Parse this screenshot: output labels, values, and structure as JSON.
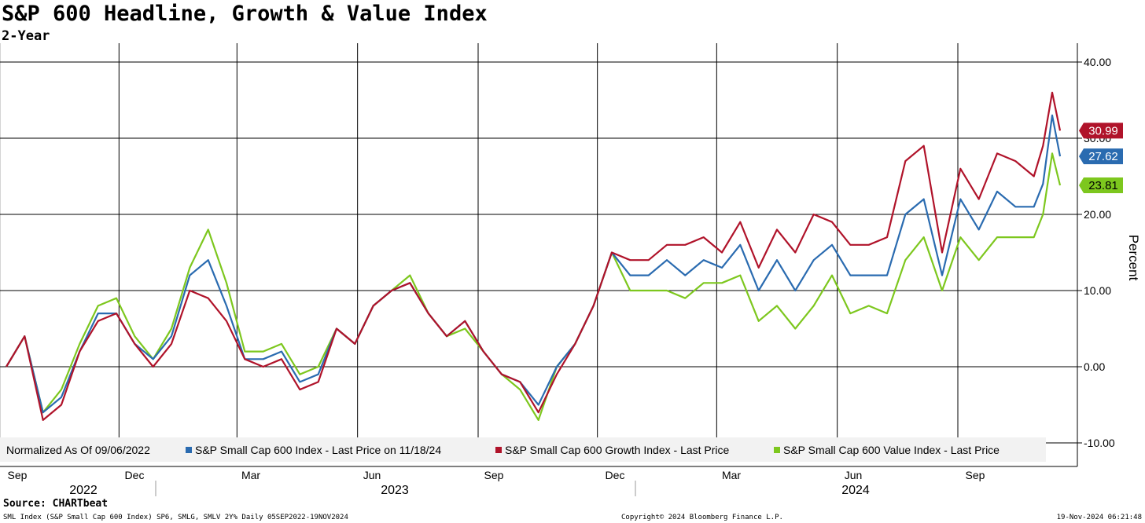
{
  "header": {
    "title": "S&P 600 Headline, Growth & Value Index",
    "subtitle": "2-Year"
  },
  "legend": {
    "normalized": "Normalized As Of 09/06/2022",
    "items": [
      {
        "label": "S&P Small Cap 600 Index - Last Price on 11/18/24",
        "color": "#2a6bb0"
      },
      {
        "label": "S&P Small Cap 600 Growth Index - Last Price",
        "color": "#b0132a"
      },
      {
        "label": "S&P Small Cap 600 Value Index - Last Price",
        "color": "#7dc71e"
      }
    ]
  },
  "footer": {
    "source": "Source: CHARTbeat",
    "left": "SML Index (S&P Small Cap 600 Index) SP6, SMLG, SMLV 2Y%  Daily 05SEP2022-19NOV2024",
    "mid": "Copyright© 2024 Bloomberg Finance L.P.",
    "right": "19-Nov-2024 06:21:48"
  },
  "chart_data": {
    "type": "line",
    "title": "S&P 600 Headline, Growth & Value Index",
    "subtitle": "2-Year",
    "ylabel": "Percent",
    "ylim": [
      -10,
      40
    ],
    "yticks": [
      -10,
      0,
      10,
      20,
      30,
      40
    ],
    "ytick_labels": [
      "-10.00",
      "0.00",
      "10.00",
      "20.00",
      "30.00",
      "40.00"
    ],
    "x_month_labels": [
      "Sep",
      "Dec",
      "Mar",
      "Jun",
      "Sep",
      "Dec",
      "Mar",
      "Jun",
      "Sep"
    ],
    "x_year_labels": [
      "2022",
      "2023",
      "2024"
    ],
    "grid": true,
    "legend_position": "bottom",
    "x": [
      "2022-09-06",
      "2022-09-20",
      "2022-10-04",
      "2022-10-18",
      "2022-11-01",
      "2022-11-15",
      "2022-11-29",
      "2022-12-13",
      "2022-12-27",
      "2023-01-10",
      "2023-01-24",
      "2023-02-07",
      "2023-02-21",
      "2023-03-07",
      "2023-03-21",
      "2023-04-04",
      "2023-04-18",
      "2023-05-02",
      "2023-05-16",
      "2023-05-30",
      "2023-06-13",
      "2023-06-27",
      "2023-07-11",
      "2023-07-25",
      "2023-08-08",
      "2023-08-22",
      "2023-09-05",
      "2023-09-19",
      "2023-10-03",
      "2023-10-17",
      "2023-10-31",
      "2023-11-14",
      "2023-11-28",
      "2023-12-12",
      "2023-12-26",
      "2024-01-09",
      "2024-01-23",
      "2024-02-06",
      "2024-02-20",
      "2024-03-05",
      "2024-03-19",
      "2024-04-02",
      "2024-04-16",
      "2024-04-30",
      "2024-05-14",
      "2024-05-28",
      "2024-06-11",
      "2024-06-25",
      "2024-07-09",
      "2024-07-23",
      "2024-08-06",
      "2024-08-20",
      "2024-09-03",
      "2024-09-17",
      "2024-10-01",
      "2024-10-15",
      "2024-10-29",
      "2024-11-05",
      "2024-11-12",
      "2024-11-18"
    ],
    "series": [
      {
        "name": "S&P Small Cap 600 Index - Last Price on 11/18/24",
        "color": "#2a6bb0",
        "last_label": "27.62",
        "values": [
          0,
          4,
          -6,
          -4,
          2,
          7,
          7,
          3,
          1,
          4,
          12,
          14,
          8,
          1,
          1,
          2,
          -2,
          -1,
          5,
          3,
          8,
          10,
          11,
          7,
          4,
          6,
          2,
          -1,
          -2,
          -5,
          0,
          3,
          8,
          15,
          12,
          12,
          14,
          12,
          14,
          13,
          16,
          10,
          14,
          10,
          14,
          16,
          12,
          12,
          12,
          20,
          22,
          12,
          22,
          18,
          23,
          21,
          21,
          24,
          33,
          27.62
        ]
      },
      {
        "name": "S&P Small Cap 600 Growth Index - Last Price",
        "color": "#b0132a",
        "last_label": "30.99",
        "values": [
          0,
          4,
          -7,
          -5,
          2,
          6,
          7,
          3,
          0,
          3,
          10,
          9,
          6,
          1,
          0,
          1,
          -3,
          -2,
          5,
          3,
          8,
          10,
          11,
          7,
          4,
          6,
          2,
          -1,
          -2,
          -6,
          -1,
          3,
          8,
          15,
          14,
          14,
          16,
          16,
          17,
          15,
          19,
          13,
          18,
          15,
          20,
          19,
          16,
          16,
          17,
          27,
          29,
          15,
          26,
          22,
          28,
          27,
          25,
          29,
          36,
          30.99
        ]
      },
      {
        "name": "S&P Small Cap 600 Value Index - Last Price",
        "color": "#7dc71e",
        "last_label": "23.81",
        "values": [
          0,
          4,
          -6,
          -3,
          3,
          8,
          9,
          4,
          1,
          5,
          13,
          18,
          11,
          2,
          2,
          3,
          -1,
          0,
          5,
          3,
          8,
          10,
          12,
          7,
          4,
          5,
          2,
          -1,
          -3,
          -7,
          0,
          3,
          8,
          15,
          10,
          10,
          10,
          9,
          11,
          11,
          12,
          6,
          8,
          5,
          8,
          12,
          7,
          8,
          7,
          14,
          17,
          10,
          17,
          14,
          17,
          17,
          17,
          20,
          28,
          23.81
        ]
      }
    ]
  }
}
